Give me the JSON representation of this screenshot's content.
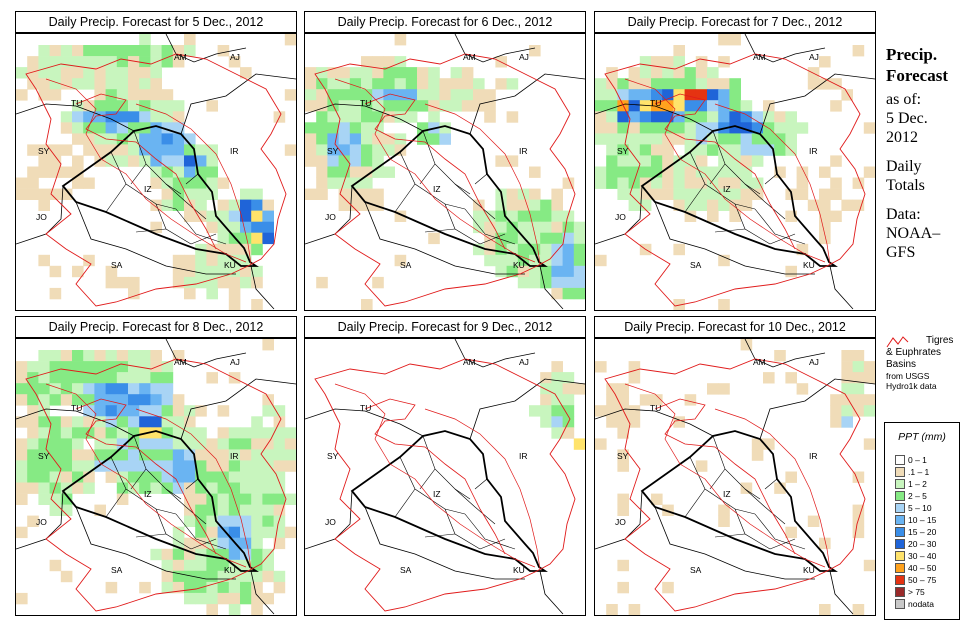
{
  "panels": [
    {
      "title": "Daily Precip. Forecast for  5 Dec., 2012",
      "day": 5
    },
    {
      "title": "Daily Precip. Forecast for  6 Dec., 2012",
      "day": 6
    },
    {
      "title": "Daily Precip. Forecast for  7 Dec., 2012",
      "day": 7
    },
    {
      "title": "Daily Precip. Forecast for  8 Dec., 2012",
      "day": 8
    },
    {
      "title": "Daily Precip. Forecast for  9 Dec., 2012",
      "day": 9
    },
    {
      "title": "Daily Precip. Forecast for  10 Dec., 2012",
      "day": 10
    }
  ],
  "map_labels": [
    "AM",
    "AJ",
    "TU",
    "SY",
    "IR",
    "JO",
    "SA",
    "KU",
    "IZ"
  ],
  "side": {
    "heading1": "Precip.",
    "heading2": "Forecast",
    "asof1": "as of:",
    "asof2": "5 Dec.",
    "asof3": "2012",
    "daily1": "Daily",
    "daily2": "Totals",
    "data1": "Data:",
    "data2": "NOAA–",
    "data3": "GFS"
  },
  "basins": {
    "line1": "Tigres",
    "line2": "& Euphrates",
    "line3": "Basins",
    "line4": "from USGS",
    "line5": "Hydro1k data"
  },
  "legend": {
    "title": "PPT (mm)",
    "items": [
      {
        "label": "0 – 1",
        "color": "#ffffff"
      },
      {
        "label": ".1 – 1",
        "color": "#f0dcb8"
      },
      {
        "label": "1 – 2",
        "color": "#c8f5be"
      },
      {
        "label": "2 – 5",
        "color": "#86ea84"
      },
      {
        "label": "5 – 10",
        "color": "#a8d4f5"
      },
      {
        "label": "10 – 15",
        "color": "#6ab4f2"
      },
      {
        "label": "15 – 20",
        "color": "#3a8ee8"
      },
      {
        "label": "20 – 30",
        "color": "#1f64d8"
      },
      {
        "label": "30 – 40",
        "color": "#ffe36b"
      },
      {
        "label": "40 – 50",
        "color": "#ffa21e"
      },
      {
        "label": "50 – 75",
        "color": "#e53312"
      },
      {
        "label": "> 75",
        "color": "#9a2a2a"
      },
      {
        "label": "nodata",
        "color": "#c8c8c8"
      }
    ]
  },
  "basin_color": "#e01b1b"
}
